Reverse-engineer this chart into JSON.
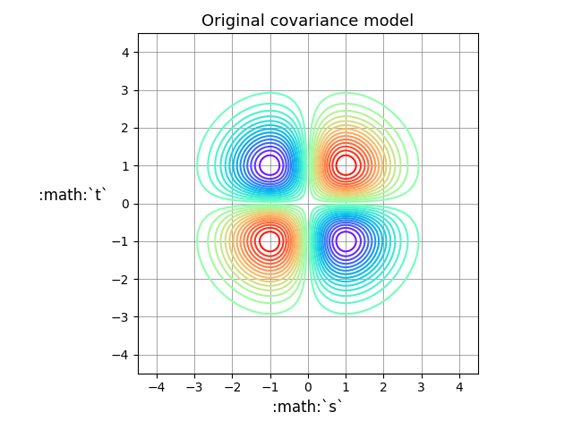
{
  "title": "Original covariance model",
  "xlabel": ":math:`s`",
  "ylabel": ":math:`t`",
  "xlim": [
    -4.5,
    4.5
  ],
  "ylim": [
    -4.5,
    4.5
  ],
  "xticks": [
    -4,
    -3,
    -2,
    -1,
    0,
    1,
    2,
    3,
    4
  ],
  "yticks": [
    -4,
    -3,
    -2,
    -1,
    0,
    1,
    2,
    3,
    4
  ],
  "grid": true,
  "figsize": [
    6.4,
    4.8
  ],
  "dpi": 100,
  "s_range": [
    -4.5,
    4.5
  ],
  "t_range": [
    -4.5,
    4.5
  ],
  "n_points": 500,
  "n_levels": 30
}
